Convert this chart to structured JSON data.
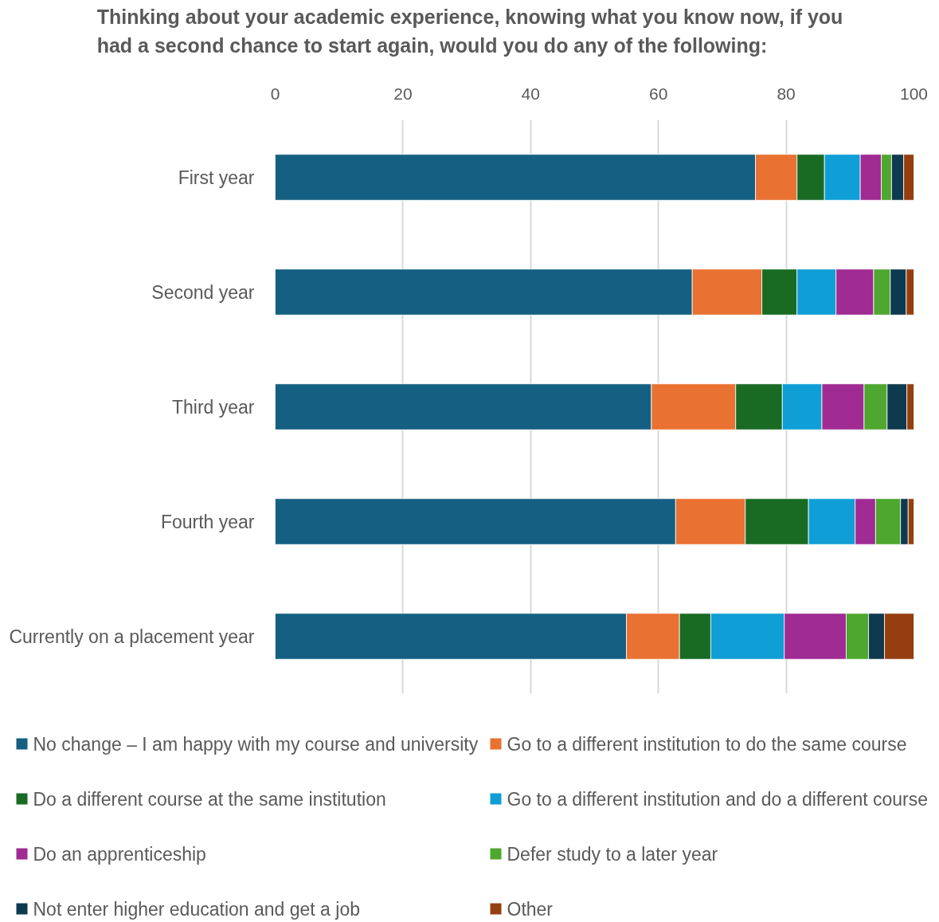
{
  "chart_data": {
    "type": "bar",
    "orientation": "horizontal",
    "stacked": true,
    "title": "Thinking about your academic experience, knowing what you know now, if you had a second chance to start again, would you do any of the following:",
    "categories": [
      "First year",
      "Second year",
      "Third year",
      "Fourth year",
      "Currently on a placement year"
    ],
    "series": [
      {
        "name": "No change – I am happy with my course and university",
        "color": "#156082",
        "values": [
          75.2,
          65.3,
          58.9,
          62.7,
          55.0
        ]
      },
      {
        "name": "Go to a different institution to do the same course",
        "color": "#e97132",
        "values": [
          6.5,
          10.9,
          13.2,
          10.9,
          8.3
        ]
      },
      {
        "name": "Do a different course at the same institution",
        "color": "#196b24",
        "values": [
          4.3,
          5.5,
          7.3,
          9.9,
          4.9
        ]
      },
      {
        "name": "Go to a different institution and do a different course",
        "color": "#0f9ed5",
        "values": [
          5.6,
          6.1,
          6.2,
          7.3,
          11.5
        ]
      },
      {
        "name": "Do an apprenticeship",
        "color": "#a02b93",
        "values": [
          3.3,
          5.9,
          6.6,
          3.2,
          9.7
        ]
      },
      {
        "name": "Defer study to a later year",
        "color": "#4ea72e",
        "values": [
          1.6,
          2.6,
          3.6,
          3.9,
          3.5
        ]
      },
      {
        "name": "Not enter higher education and get a job",
        "color": "#0e3a4f",
        "values": [
          1.9,
          2.5,
          3.1,
          1.2,
          2.5
        ]
      },
      {
        "name": "Other",
        "color": "#953f10",
        "values": [
          1.6,
          1.2,
          1.1,
          0.9,
          4.6
        ]
      }
    ],
    "xlim": [
      0,
      100
    ],
    "xticks": [
      0,
      20,
      40,
      60,
      80,
      100
    ],
    "grid": "x",
    "legend": "bottom"
  }
}
